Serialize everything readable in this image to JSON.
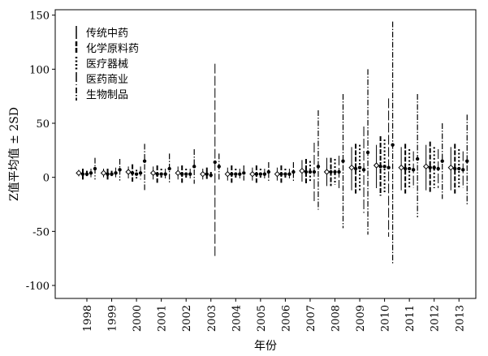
{
  "chart_data": {
    "type": "errorbar",
    "xlabel": "年份",
    "ylabel": "Z值平均值 ± 2SD",
    "ylim": [
      -112,
      155
    ],
    "yticks": [
      -100,
      -50,
      0,
      50,
      100,
      150
    ],
    "categories": [
      "1998",
      "1999",
      "2000",
      "2001",
      "2002",
      "2003",
      "2004",
      "2005",
      "2006",
      "2007",
      "2008",
      "2009",
      "2010",
      "2011",
      "2012",
      "2013"
    ],
    "legend_position": "top-left",
    "grid": false,
    "series": [
      {
        "name": "传统中药",
        "style": "solid",
        "means": [
          4,
          4,
          5,
          4,
          4,
          3,
          3,
          3,
          3,
          6,
          5,
          9,
          11,
          9,
          10,
          9
        ],
        "lows": [
          1,
          0,
          -1,
          -2,
          -2,
          -2,
          -3,
          -3,
          -3,
          -4,
          -8,
          -12,
          -10,
          -12,
          -12,
          -12
        ],
        "highs": [
          7,
          8,
          10,
          10,
          10,
          8,
          9,
          9,
          9,
          16,
          18,
          28,
          30,
          28,
          30,
          28
        ]
      },
      {
        "name": "化学原料药",
        "style": "bold-dash",
        "means": [
          3,
          3,
          4,
          3,
          3,
          3,
          3,
          3,
          3,
          5,
          5,
          8,
          10,
          8,
          9,
          8
        ],
        "lows": [
          -2,
          -2,
          -4,
          -5,
          -5,
          -3,
          -5,
          -5,
          -5,
          -7,
          -8,
          -15,
          -17,
          -15,
          -15,
          -15
        ],
        "highs": [
          8,
          8,
          12,
          11,
          11,
          9,
          11,
          11,
          11,
          17,
          18,
          31,
          38,
          31,
          33,
          31
        ]
      },
      {
        "name": "医疗器械",
        "style": "dotted",
        "means": [
          3,
          3,
          3,
          3,
          3,
          2,
          3,
          3,
          3,
          5,
          5,
          9,
          10,
          8,
          9,
          8
        ],
        "lows": [
          0,
          0,
          -1,
          -2,
          -2,
          -1,
          -2,
          -2,
          -2,
          -5,
          -7,
          -12,
          -15,
          -10,
          -10,
          -10
        ],
        "highs": [
          6,
          6,
          7,
          8,
          8,
          5,
          8,
          8,
          8,
          15,
          17,
          30,
          35,
          26,
          28,
          26
        ]
      },
      {
        "name": "医药商业",
        "style": "long-dash",
        "means": [
          4,
          4,
          4,
          3,
          3,
          14,
          3,
          3,
          3,
          5,
          5,
          7,
          9,
          7,
          8,
          7
        ],
        "lows": [
          0,
          -1,
          -2,
          -2,
          -2,
          -73,
          -2,
          -2,
          -2,
          -22,
          -10,
          -33,
          -55,
          -10,
          -10,
          -10
        ],
        "highs": [
          8,
          9,
          10,
          8,
          8,
          105,
          8,
          8,
          8,
          32,
          20,
          47,
          73,
          24,
          26,
          24
        ]
      },
      {
        "name": "生物制品",
        "style": "dash-dot",
        "means": [
          8,
          7,
          15,
          8,
          10,
          10,
          4,
          5,
          5,
          10,
          15,
          23,
          30,
          17,
          15,
          15
        ],
        "lows": [
          -2,
          -3,
          -12,
          -6,
          -6,
          -2,
          -3,
          -4,
          -4,
          -30,
          -47,
          -53,
          -80,
          -37,
          -20,
          -25
        ],
        "highs": [
          18,
          17,
          31,
          22,
          26,
          22,
          11,
          14,
          14,
          62,
          77,
          100,
          144,
          77,
          50,
          58
        ]
      }
    ]
  }
}
